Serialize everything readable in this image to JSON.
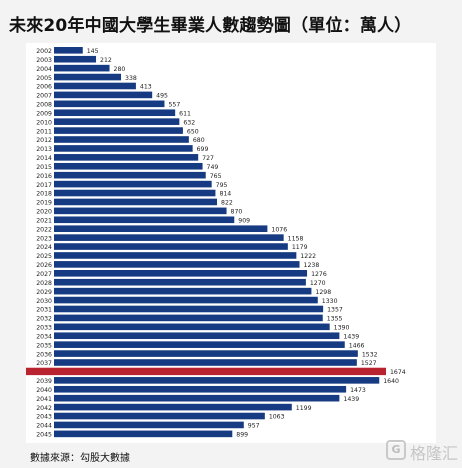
{
  "title": "未來20年中國大學生畢業人數趨勢圖（單位：萬人）",
  "source": "數據來源：勾股大數據",
  "watermark": {
    "logo": "G",
    "text": "格隆汇"
  },
  "colors": {
    "bar": "#173b82",
    "highlight": "#b8232f",
    "text": "#222222"
  },
  "chart_data": {
    "type": "bar",
    "orientation": "horizontal",
    "categories": [
      "2002",
      "2003",
      "2004",
      "2005",
      "2006",
      "2007",
      "2008",
      "2009",
      "2010",
      "2011",
      "2012",
      "2013",
      "2014",
      "2015",
      "2016",
      "2017",
      "2018",
      "2019",
      "2020",
      "2021",
      "2022",
      "2023",
      "2024",
      "2025",
      "2026",
      "2027",
      "2028",
      "2029",
      "2030",
      "2031",
      "2032",
      "2033",
      "2034",
      "2035",
      "2036",
      "2037",
      "2038",
      "2039",
      "2040",
      "2041",
      "2042",
      "2043",
      "2044",
      "2045"
    ],
    "values": [
      145,
      212,
      280,
      338,
      413,
      495,
      557,
      611,
      632,
      650,
      680,
      699,
      727,
      749,
      765,
      795,
      814,
      822,
      870,
      909,
      1076,
      1158,
      1179,
      1222,
      1238,
      1276,
      1270,
      1298,
      1330,
      1357,
      1355,
      1390,
      1439,
      1466,
      1532,
      1527,
      1674,
      1640,
      1473,
      1439,
      1199,
      1063,
      957,
      899
    ],
    "highlight_category": "2038",
    "xlim": [
      0,
      1674
    ]
  }
}
